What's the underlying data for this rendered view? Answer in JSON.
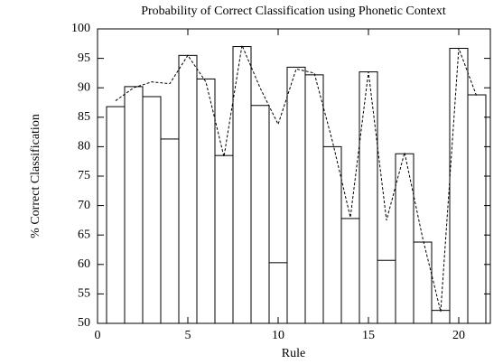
{
  "chart_data": {
    "type": "bar",
    "title": "Probability of Correct Classification using Phonetic Context",
    "x_label": "Rule",
    "y_label": "% Correct Classification",
    "x": [
      1,
      2,
      3,
      4,
      5,
      6,
      7,
      8,
      9,
      10,
      11,
      12,
      13,
      14,
      15,
      16,
      17,
      18,
      19,
      20,
      21
    ],
    "series": [
      {
        "kind": "bar",
        "color": "#000000",
        "values": [
          86.8,
          90.2,
          88.5,
          81.3,
          95.5,
          91.5,
          78.5,
          97.0,
          87.0,
          60.3,
          93.5,
          92.2,
          80.0,
          67.8,
          92.7,
          60.7,
          78.8,
          63.8,
          52.2,
          96.7,
          88.8
        ]
      },
      {
        "kind": "line",
        "color": "#000000",
        "values": [
          87.8,
          90.0,
          91.0,
          90.7,
          95.5,
          91.0,
          78.3,
          97.2,
          90.0,
          83.8,
          93.2,
          92.5,
          81.0,
          68.0,
          92.7,
          67.5,
          79.0,
          64.5,
          52.0,
          96.7,
          88.5
        ]
      }
    ],
    "xlim": [
      0,
      21.75
    ],
    "xticks": [
      0,
      5,
      10,
      15,
      20
    ],
    "ylim": [
      50,
      100
    ],
    "yticks": [
      50,
      55,
      60,
      65,
      70,
      75,
      80,
      85,
      90,
      95,
      100
    ]
  }
}
